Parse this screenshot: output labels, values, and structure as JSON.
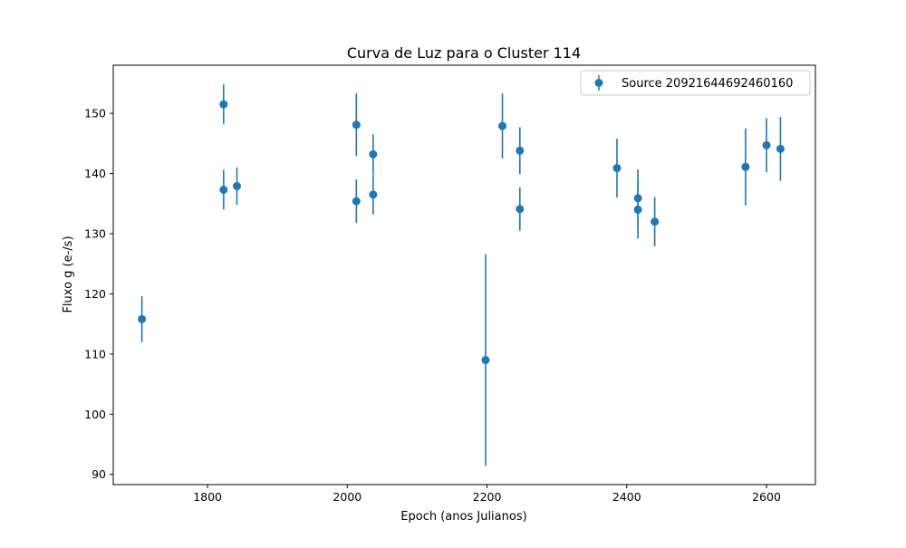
{
  "chart_data": {
    "type": "scatter",
    "title": "Curva de Luz para o Cluster 114",
    "xlabel": "Epoch (anos Julianos)",
    "ylabel": "Fluxo g (e-/s)",
    "xlim": [
      1665,
      2670
    ],
    "ylim": [
      88.3,
      158
    ],
    "xticks": [
      1800,
      2000,
      2200,
      2400,
      2600
    ],
    "yticks": [
      90,
      100,
      110,
      120,
      130,
      140,
      150
    ],
    "grid": false,
    "legend_position": "top-right",
    "color": "#1f77b4",
    "series": [
      {
        "name": "Source 20921644692460160",
        "points": [
          {
            "x": 1706,
            "y": 115.8,
            "err": 3.8
          },
          {
            "x": 1823,
            "y": 151.5,
            "err": 3.3
          },
          {
            "x": 1823,
            "y": 137.3,
            "err": 3.3
          },
          {
            "x": 1842,
            "y": 137.9,
            "err": 3.1
          },
          {
            "x": 2013,
            "y": 148.1,
            "err": 5.2
          },
          {
            "x": 2013,
            "y": 135.4,
            "err": 3.6
          },
          {
            "x": 2037,
            "y": 143.2,
            "err": 3.3
          },
          {
            "x": 2037,
            "y": 136.5,
            "err": 3.3
          },
          {
            "x": 2198,
            "y": 109.0,
            "err": 17.6
          },
          {
            "x": 2222,
            "y": 147.9,
            "err": 5.4
          },
          {
            "x": 2247,
            "y": 143.8,
            "err": 3.9
          },
          {
            "x": 2247,
            "y": 134.1,
            "err": 3.6
          },
          {
            "x": 2386,
            "y": 140.9,
            "err": 4.9
          },
          {
            "x": 2416,
            "y": 135.9,
            "err": 4.8
          },
          {
            "x": 2416,
            "y": 134.0,
            "err": 4.8
          },
          {
            "x": 2440,
            "y": 132.0,
            "err": 4.1
          },
          {
            "x": 2570,
            "y": 141.1,
            "err": 6.4
          },
          {
            "x": 2600,
            "y": 144.7,
            "err": 4.5
          },
          {
            "x": 2620,
            "y": 144.1,
            "err": 5.3
          }
        ]
      }
    ]
  }
}
